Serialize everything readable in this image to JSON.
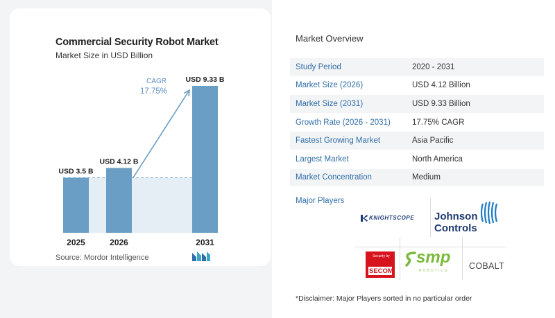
{
  "chart_data": {
    "type": "bar",
    "title": "Commercial Security Robot Market",
    "subtitle": "Market Size in USD Billion",
    "categories": [
      "2025",
      "2026",
      "2031"
    ],
    "values": [
      3.5,
      4.12,
      9.33
    ],
    "value_labels": [
      "USD 3.5 B",
      "USD 4.12 B",
      "USD 9.33 B"
    ],
    "cagr_label": "CAGR",
    "cagr_value": "17.75%",
    "ylim": [
      0,
      9.33
    ],
    "colors": {
      "bar": "#6b9ec4",
      "shade": "#e6eef5",
      "arrow": "#6b9ec4",
      "cagr_text": "#5b8fbe"
    }
  },
  "source": "Source:  Mordor Intelligence",
  "overview": {
    "title": "Market Overview",
    "rows": [
      {
        "label": "Study Period",
        "value": "2020 - 2031"
      },
      {
        "label": "Market Size (2026)",
        "value": "USD 4.12 Billion"
      },
      {
        "label": "Market Size (2031)",
        "value": "USD 9.33 Billion"
      },
      {
        "label": "Growth Rate (2026 - 2031)",
        "value": "17.75% CAGR"
      },
      {
        "label": "Fastest Growing Market",
        "value": "Asia Pacific"
      },
      {
        "label": "Largest Market",
        "value": "North America"
      },
      {
        "label": "Market Concentration",
        "value": "Medium"
      }
    ]
  },
  "players": {
    "title": "Major Players",
    "logos": {
      "knightscope": "KNIGHTSCOPE",
      "johnson_1": "Johnson",
      "johnson_2": "Controls",
      "secom_small": "Security by",
      "secom": "SECOM",
      "smp": "smp",
      "smp_sub": "ROBOTICS",
      "cobalt": "COBALT"
    }
  },
  "disclaimer": "*Disclaimer: Major Players sorted in no particular order"
}
